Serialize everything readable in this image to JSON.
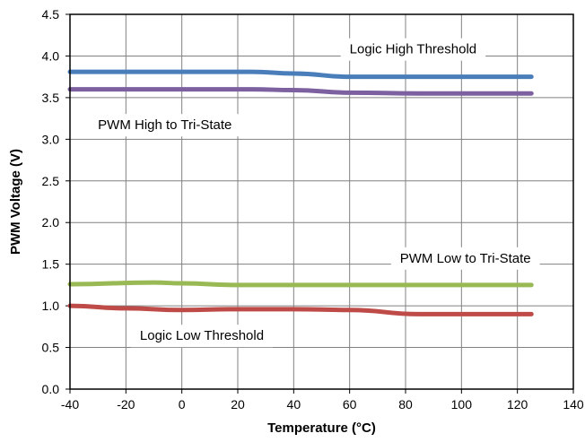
{
  "chart_data": {
    "type": "line",
    "title": "",
    "xlabel": "Temperature (°C)",
    "ylabel": "PWM Voltage (V)",
    "xlim": [
      -40,
      140
    ],
    "ylim": [
      0.0,
      4.5
    ],
    "x_ticks": [
      "-40",
      "-20",
      "0",
      "20",
      "40",
      "60",
      "80",
      "100",
      "120",
      "140"
    ],
    "y_ticks": [
      "0.0",
      "0.5",
      "1.0",
      "1.5",
      "2.0",
      "2.5",
      "3.0",
      "3.5",
      "4.0",
      "4.5"
    ],
    "grid": true,
    "legend": "none",
    "series": [
      {
        "name": "Logic High Threshold",
        "color": "#4a7ebb",
        "x": [
          -40,
          -20,
          0,
          25,
          40,
          60,
          85,
          100,
          125
        ],
        "values": [
          3.81,
          3.81,
          3.81,
          3.81,
          3.79,
          3.75,
          3.75,
          3.75,
          3.75
        ]
      },
      {
        "name": "PWM High to Tri-State",
        "color": "#7d60a0",
        "x": [
          -40,
          -20,
          0,
          25,
          40,
          60,
          85,
          100,
          125
        ],
        "values": [
          3.6,
          3.6,
          3.6,
          3.6,
          3.59,
          3.56,
          3.55,
          3.55,
          3.55
        ]
      },
      {
        "name": "PWM Low to Tri-State",
        "color": "#98b954",
        "x": [
          -40,
          -10,
          0,
          20,
          40,
          60,
          85,
          100,
          125
        ],
        "values": [
          1.26,
          1.28,
          1.27,
          1.25,
          1.25,
          1.25,
          1.25,
          1.25,
          1.25
        ]
      },
      {
        "name": "Logic Low Threshold",
        "color": "#be4b48",
        "x": [
          -40,
          -20,
          0,
          20,
          40,
          60,
          85,
          100,
          125
        ],
        "values": [
          1.0,
          0.97,
          0.95,
          0.96,
          0.96,
          0.95,
          0.9,
          0.9,
          0.9
        ]
      }
    ],
    "annotations": [
      {
        "text": "Logic High Threshold",
        "x": 60,
        "y": 4.03
      },
      {
        "text": "PWM High to Tri-State",
        "x": -30,
        "y": 3.12
      },
      {
        "text": "PWM Low to Tri-State",
        "x": 78,
        "y": 1.52
      },
      {
        "text": "Logic Low Threshold",
        "x": -15,
        "y": 0.59
      }
    ]
  }
}
